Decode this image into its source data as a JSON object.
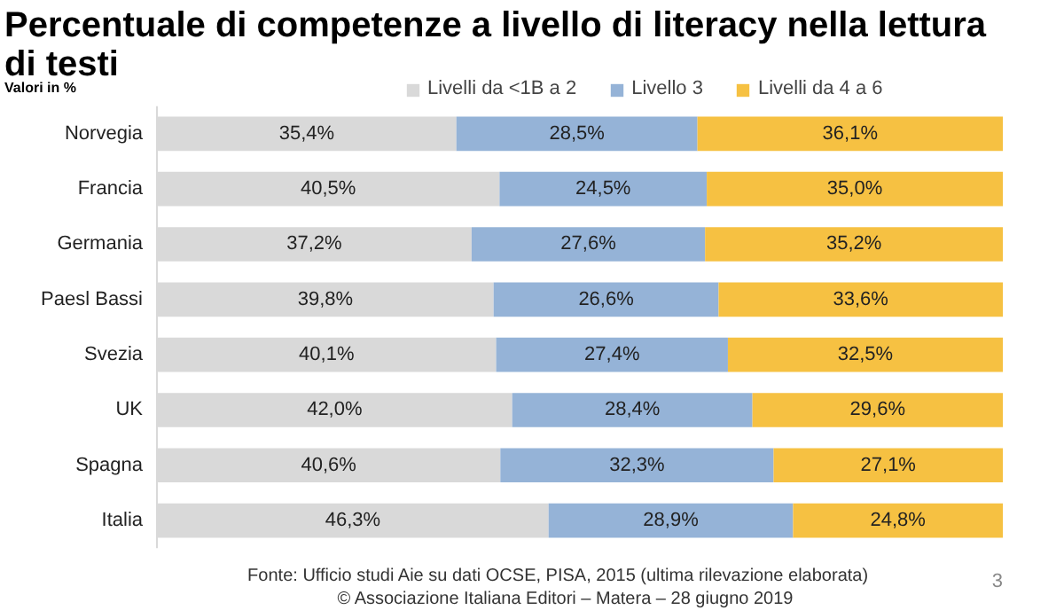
{
  "chart_data": {
    "type": "bar",
    "orientation": "horizontal",
    "stacked": true,
    "title": "Percentuale di competenze a livello di literacy nella lettura di testi",
    "subtitle": "Valori in %",
    "categories": [
      "Norvegia",
      "Francia",
      "Germania",
      "Paesl Bassi",
      "Svezia",
      "UK",
      "Spagna",
      "Italia"
    ],
    "series": [
      {
        "name": "Livelli da <1B a 2",
        "color": "#d9d9d9",
        "values": [
          35.4,
          40.5,
          37.2,
          39.8,
          40.1,
          42.0,
          40.6,
          46.3
        ],
        "value_labels": [
          "35,4%",
          "40,5%",
          "37,2%",
          "39,8%",
          "40,1%",
          "42,0%",
          "40,6%",
          "46,3%"
        ]
      },
      {
        "name": "Livello 3",
        "color": "#95b3d7",
        "values": [
          28.5,
          24.5,
          27.6,
          26.6,
          27.4,
          28.4,
          32.3,
          28.9
        ],
        "value_labels": [
          "28,5%",
          "24,5%",
          "27,6%",
          "26,6%",
          "27,4%",
          "28,4%",
          "32,3%",
          "28,9%"
        ]
      },
      {
        "name": "Livelli da 4 a 6",
        "color": "#f6c142",
        "values": [
          36.1,
          35.0,
          35.2,
          33.6,
          32.5,
          29.6,
          27.1,
          24.8
        ],
        "value_labels": [
          "36,1%",
          "35,0%",
          "35,2%",
          "33,6%",
          "32,5%",
          "29,6%",
          "27,1%",
          "24,8%"
        ]
      }
    ],
    "legend": "top",
    "grid": false,
    "annotations": [
      "Fonte:  Ufficio studi Aie su  dati  OCSE, PISA, 2015 (ultima rilevazione elaborata)",
      "© Associazione Italiana Editori – Matera – 28 giugno 2019",
      "3"
    ]
  }
}
